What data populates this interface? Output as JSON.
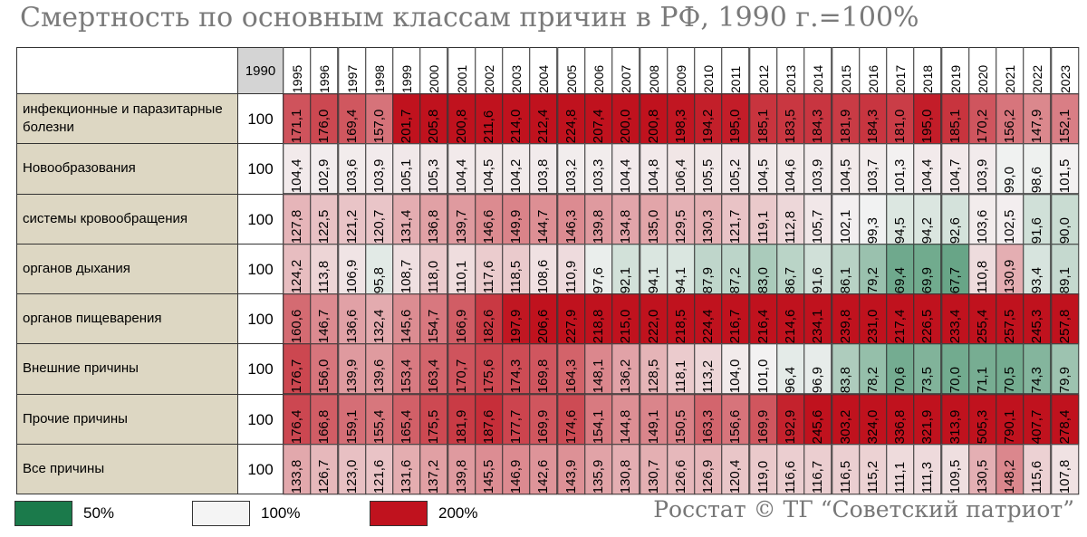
{
  "header": {
    "title": "Смертность по основным классам причин в РФ, 1990 г.=100%"
  },
  "table": {
    "columns": [
      1990,
      1995,
      1996,
      1997,
      1998,
      1999,
      2000,
      2001,
      2002,
      2003,
      2004,
      2005,
      2006,
      2007,
      2008,
      2009,
      2010,
      2011,
      2012,
      2013,
      2014,
      2015,
      2016,
      2017,
      2018,
      2019,
      2020,
      2021,
      2022,
      2023
    ],
    "rows": [
      {
        "label": "инфекционные и паразитарные болезни",
        "base": 100,
        "values": [
          171.1,
          176.0,
          169.4,
          157.0,
          201.7,
          205.8,
          200.8,
          211.6,
          214.0,
          212.4,
          224.8,
          207.4,
          200.0,
          200.8,
          198.3,
          194.2,
          195.0,
          185.1,
          183.5,
          184.3,
          181.9,
          184.3,
          181.0,
          195.0,
          185.1,
          170.2,
          156.2,
          147.9,
          152.1
        ],
        "value_labels": [
          "171,1",
          "176,0",
          "169,4",
          "157,0",
          "201,7",
          "205,8",
          "200,8",
          "211,6",
          "214,0",
          "212,4",
          "224,8",
          "207,4",
          "200,0",
          "200,8",
          "198,3",
          "194,2",
          "195,0",
          "185,1",
          "183,5",
          "184,3",
          "181,9",
          "184,3",
          "181,0",
          "195,0",
          "185,1",
          "170,2",
          "156,2",
          "147,9",
          "152,1"
        ]
      },
      {
        "label": "Новообразования",
        "base": 100,
        "values": [
          104.4,
          102.9,
          103.6,
          103.9,
          105.1,
          105.3,
          104.4,
          104.5,
          104.2,
          103.8,
          103.2,
          103.3,
          104.4,
          104.8,
          106.4,
          105.5,
          105.2,
          104.5,
          104.6,
          103.9,
          104.5,
          103.7,
          101.3,
          104.4,
          104.7,
          103.9,
          99.0,
          98.6,
          101.5
        ],
        "value_labels": [
          "104,4",
          "102,9",
          "103,6",
          "103,9",
          "105,1",
          "105,3",
          "104,4",
          "104,5",
          "104,2",
          "103,8",
          "103,2",
          "103,3",
          "104,4",
          "104,8",
          "106,4",
          "105,5",
          "105,2",
          "104,5",
          "104,6",
          "103,9",
          "104,5",
          "103,7",
          "101,3",
          "104,4",
          "104,7",
          "103,9",
          "99,0",
          "98,6",
          "101,5"
        ]
      },
      {
        "label": "системы кровообращения",
        "base": 100,
        "values": [
          127.8,
          122.5,
          121.2,
          120.7,
          131.4,
          136.8,
          139.7,
          146.6,
          149.9,
          144.7,
          146.3,
          139.8,
          134.8,
          135.0,
          129.5,
          130.3,
          121.7,
          119.1,
          112.8,
          105.7,
          102.1,
          99.3,
          94.5,
          94.2,
          92.6,
          103.6,
          102.5,
          91.6,
          90.0
        ],
        "value_labels": [
          "127,8",
          "122,5",
          "121,2",
          "120,7",
          "131,4",
          "136,8",
          "139,7",
          "146,6",
          "149,9",
          "144,7",
          "146,3",
          "139,8",
          "134,8",
          "135,0",
          "129,5",
          "130,3",
          "121,7",
          "119,1",
          "112,8",
          "105,7",
          "102,1",
          "99,3",
          "94,5",
          "94,2",
          "92,6",
          "103,6",
          "102,5",
          "91,6",
          "90,0"
        ]
      },
      {
        "label": "органов дыхания",
        "base": 100,
        "values": [
          124.2,
          113.8,
          106.9,
          95.8,
          108.7,
          118.0,
          110.1,
          117.6,
          118.5,
          108.6,
          110.9,
          97.6,
          92.1,
          94.1,
          94.1,
          87.9,
          87.2,
          83.0,
          86.7,
          91.6,
          86.1,
          79.2,
          69.4,
          69.9,
          67.7,
          110.8,
          130.9,
          93.4,
          89.1
        ],
        "value_labels": [
          "124,2",
          "113,8",
          "106,9",
          "95,8",
          "108,7",
          "118,0",
          "110,1",
          "117,6",
          "118,5",
          "108,6",
          "110,9",
          "97,6",
          "92,1",
          "94,1",
          "94,1",
          "87,9",
          "87,2",
          "83,0",
          "86,7",
          "91,6",
          "86,1",
          "79,2",
          "69,4",
          "69,9",
          "67,7",
          "110,8",
          "130,9",
          "93,4",
          "89,1"
        ]
      },
      {
        "label": "органов пищеварения",
        "base": 100,
        "values": [
          160.6,
          146.7,
          136.6,
          132.4,
          145.6,
          154.7,
          166.9,
          182.6,
          197.9,
          206.6,
          227.9,
          218.8,
          215.0,
          222.0,
          218.5,
          224.4,
          216.7,
          216.4,
          214.6,
          234.1,
          239.8,
          231.0,
          217.4,
          226.5,
          233.4,
          255.4,
          257.5,
          245.3,
          257.8
        ],
        "value_labels": [
          "160,6",
          "146,7",
          "136,6",
          "132,4",
          "145,6",
          "154,7",
          "166,9",
          "182,6",
          "197,9",
          "206,6",
          "227,9",
          "218,8",
          "215,0",
          "222,0",
          "218,5",
          "224,4",
          "216,7",
          "216,4",
          "214,6",
          "234,1",
          "239,8",
          "231,0",
          "217,4",
          "226,5",
          "233,4",
          "255,4",
          "257,5",
          "245,3",
          "257,8"
        ]
      },
      {
        "label": "Внешние причины",
        "base": 100,
        "values": [
          176.7,
          156.0,
          139.9,
          139.6,
          153.4,
          163.4,
          170.7,
          175.6,
          174.3,
          169.8,
          164.3,
          148.1,
          136.2,
          128.5,
          118.1,
          113.2,
          104.0,
          101.0,
          96.4,
          96.9,
          83.8,
          78.2,
          70.6,
          73.5,
          70.0,
          71.1,
          70.5,
          74.3,
          79.9
        ],
        "value_labels": [
          "176,7",
          "156,0",
          "139,9",
          "139,6",
          "153,4",
          "163,4",
          "170,7",
          "175,6",
          "174,3",
          "169,8",
          "164,3",
          "148,1",
          "136,2",
          "128,5",
          "118,1",
          "113,2",
          "104,0",
          "101,0",
          "96,4",
          "96,9",
          "83,8",
          "78,2",
          "70,6",
          "73,5",
          "70,0",
          "71,1",
          "70,5",
          "74,3",
          "79,9"
        ]
      },
      {
        "label": "Прочие причины",
        "base": 100,
        "values": [
          176.4,
          166.8,
          159.1,
          155.4,
          165.4,
          175.5,
          181.9,
          187.6,
          177.7,
          169.9,
          174.6,
          154.1,
          144.8,
          149.1,
          150.5,
          163.3,
          156.6,
          169.9,
          192.9,
          245.6,
          303.2,
          324.0,
          336.8,
          321.9,
          313.9,
          505.3,
          790.1,
          407.7,
          278.4
        ],
        "value_labels": [
          "176,4",
          "166,8",
          "159,1",
          "155,4",
          "165,4",
          "175,5",
          "181,9",
          "187,6",
          "177,7",
          "169,9",
          "174,6",
          "154,1",
          "144,8",
          "149,1",
          "150,5",
          "163,3",
          "156,6",
          "169,9",
          "192,9",
          "245,6",
          "303,2",
          "324,0",
          "336,8",
          "321,9",
          "313,9",
          "505,3",
          "790,1",
          "407,7",
          "278,4"
        ]
      },
      {
        "label": "Все причины",
        "base": 100,
        "values": [
          133.8,
          126.7,
          123.0,
          121.6,
          131.6,
          137.2,
          139.8,
          145.5,
          146.9,
          142.6,
          143.9,
          135.9,
          130.8,
          130.7,
          126.6,
          126.9,
          120.4,
          119.0,
          116.6,
          116.7,
          116.5,
          115.2,
          111.1,
          111.3,
          109.5,
          130.5,
          148.2,
          115.6,
          107.8
        ],
        "value_labels": [
          "133,8",
          "126,7",
          "123,0",
          "121,6",
          "131,6",
          "137,2",
          "139,8",
          "145,5",
          "146,9",
          "142,6",
          "143,9",
          "135,9",
          "130,8",
          "130,7",
          "126,6",
          "126,9",
          "120,4",
          "119,0",
          "116,6",
          "116,7",
          "116,5",
          "115,2",
          "111,1",
          "111,3",
          "109,5",
          "130,5",
          "148,2",
          "115,6",
          "107,8"
        ]
      }
    ]
  },
  "legend": [
    {
      "value": 50,
      "label": "50%",
      "color": "#1b7a4b"
    },
    {
      "value": 100,
      "label": "100%",
      "color": "#f4f4f4"
    },
    {
      "value": 200,
      "label": "200%",
      "color": "#c0121e"
    }
  ],
  "source": "Росстат © ТГ “Советский патриот”"
}
